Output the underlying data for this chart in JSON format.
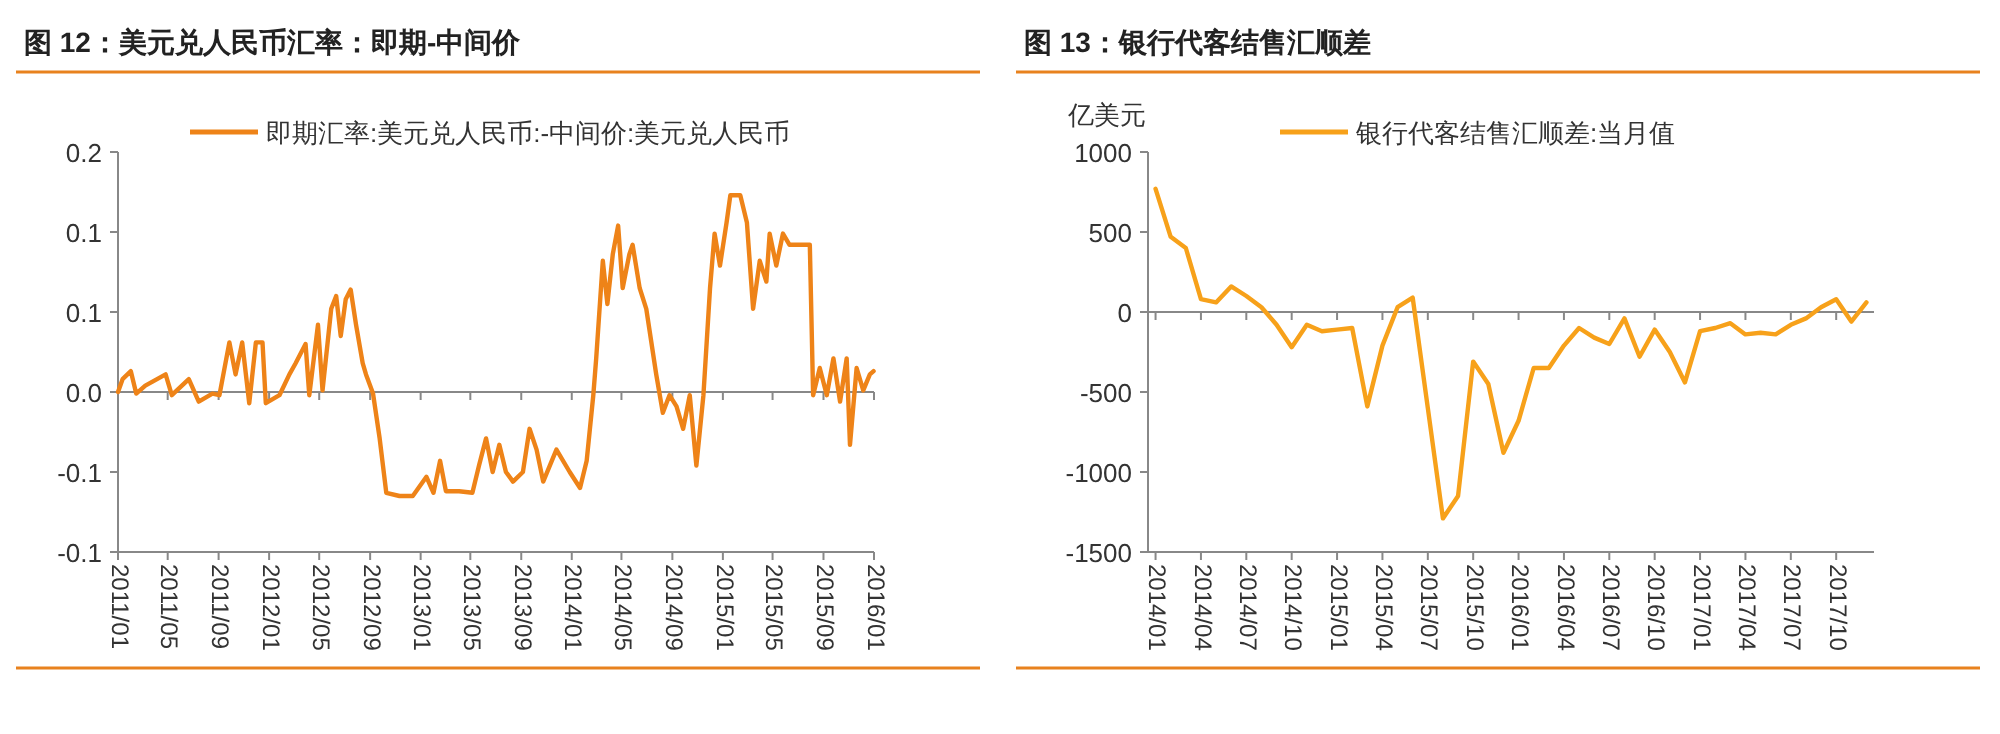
{
  "chart_data": [
    {
      "type": "line",
      "title": "图 12：美元兑人民币汇率：即期-中间价",
      "legend": "top",
      "x": [
        "2011-01-01",
        "2011-01-12",
        "2011-02-01",
        "2011-02-14",
        "2011-03-08",
        "2011-04-26",
        "2011-05-11",
        "2011-06-21",
        "2011-07-15",
        "2011-08-17",
        "2011-09-03",
        "2011-09-27",
        "2011-10-12",
        "2011-10-28",
        "2011-11-14",
        "2011-11-30",
        "2011-12-16",
        "2011-12-24",
        "2012-01-26",
        "2012-02-19",
        "2012-03-05",
        "2012-03-29",
        "2012-04-07",
        "2012-04-28",
        "2012-05-09",
        "2012-05-30",
        "2012-06-11",
        "2012-06-22",
        "2012-07-04",
        "2012-07-16",
        "2012-07-29",
        "2012-08-14",
        "2012-08-22",
        "2012-09-08",
        "2012-09-24",
        "2012-10-10",
        "2012-11-11",
        "2012-12-13",
        "2013-01-15",
        "2013-02-01",
        "2013-02-17",
        "2013-03-03",
        "2013-04-04",
        "2013-05-06",
        "2013-05-22",
        "2013-06-08",
        "2013-06-24",
        "2013-07-10",
        "2013-07-26",
        "2013-08-12",
        "2013-09-05",
        "2013-09-21",
        "2013-10-08",
        "2013-10-24",
        "2013-11-09",
        "2013-11-25",
        "2013-12-27",
        "2014-01-21",
        "2014-02-06",
        "2014-02-22",
        "2014-03-01",
        "2014-03-17",
        "2014-03-28",
        "2014-04-10",
        "2014-04-23",
        "2014-05-04",
        "2014-05-20",
        "2014-05-28",
        "2014-06-14",
        "2014-06-30",
        "2014-07-24",
        "2014-08-09",
        "2014-08-25",
        "2014-09-11",
        "2014-09-27",
        "2014-10-13",
        "2014-10-29",
        "2014-11-15",
        "2014-12-01",
        "2014-12-12",
        "2014-12-25",
        "2015-01-10",
        "2015-01-19",
        "2015-02-12",
        "2015-02-28",
        "2015-03-15",
        "2015-03-31",
        "2015-04-16",
        "2015-04-24",
        "2015-05-10",
        "2015-05-26",
        "2015-06-11",
        "2015-07-06",
        "2015-07-30",
        "2015-08-07",
        "2015-08-23",
        "2015-09-09",
        "2015-09-25",
        "2015-10-11",
        "2015-10-27",
        "2015-11-04",
        "2015-11-20",
        "2015-12-06",
        "2015-12-22",
        "2015-12-31"
      ],
      "series": [
        {
          "name": "即期汇率:美元兑人民币:-中间价:美元兑人民币",
          "color": "#ee8318",
          "values": [
            0,
            0.008,
            0.013,
            -0.001,
            0.004,
            0.011,
            -0.002,
            0.008,
            -0.006,
            -0.001,
            -0.002,
            0.031,
            0.011,
            0.031,
            -0.007,
            0.031,
            0.031,
            -0.007,
            -0.002,
            0.011,
            0.018,
            0.03,
            -0.002,
            0.042,
            0.001,
            0.052,
            0.06,
            0.035,
            0.058,
            0.064,
            0.042,
            0.018,
            0.011,
            -0.001,
            -0.029,
            -0.063,
            -0.065,
            -0.065,
            -0.053,
            -0.063,
            -0.043,
            -0.062,
            -0.062,
            -0.063,
            -0.046,
            -0.029,
            -0.05,
            -0.033,
            -0.05,
            -0.056,
            -0.05,
            -0.023,
            -0.036,
            -0.056,
            -0.046,
            -0.036,
            -0.05,
            -0.06,
            -0.043,
            -0.002,
            0.021,
            0.082,
            0.055,
            0.086,
            0.104,
            0.065,
            0.086,
            0.092,
            0.065,
            0.052,
            0.011,
            -0.013,
            -0.002,
            -0.009,
            -0.023,
            -0.002,
            -0.046,
            -0.002,
            0.065,
            0.099,
            0.079,
            0.106,
            0.123,
            0.123,
            0.106,
            0.052,
            0.082,
            0.069,
            0.099,
            0.079,
            0.099,
            0.092,
            0.092,
            0.092,
            -0.002,
            0.015,
            -0.002,
            0.021,
            -0.006,
            0.021,
            -0.033,
            0.015,
            0.001,
            0.011,
            0.013
          ]
        }
      ],
      "xlim": [
        "2011-01-01",
        "2016-01-01"
      ],
      "xticks": [
        {
          "value": "2011-01",
          "label": "2011/01"
        },
        {
          "value": "2011-05",
          "label": "2011/05"
        },
        {
          "value": "2011-09",
          "label": "2011/09"
        },
        {
          "value": "2012-01",
          "label": "2012/01"
        },
        {
          "value": "2012-05",
          "label": "2012/05"
        },
        {
          "value": "2012-09",
          "label": "2012/09"
        },
        {
          "value": "2013-01",
          "label": "2013/01"
        },
        {
          "value": "2013-05",
          "label": "2013/05"
        },
        {
          "value": "2013-09",
          "label": "2013/09"
        },
        {
          "value": "2014-01",
          "label": "2014/01"
        },
        {
          "value": "2014-05",
          "label": "2014/05"
        },
        {
          "value": "2014-09",
          "label": "2014/09"
        },
        {
          "value": "2015-01",
          "label": "2015/01"
        },
        {
          "value": "2015-05",
          "label": "2015/05"
        },
        {
          "value": "2015-09",
          "label": "2015/09"
        },
        {
          "value": "2016-01",
          "label": "2016/01"
        }
      ],
      "ylim": [
        -0.1,
        0.15
      ],
      "yticks": [
        {
          "value": 0.15,
          "label": "0.2"
        },
        {
          "value": 0.1,
          "label": "0.1"
        },
        {
          "value": 0.05,
          "label": "0.1"
        },
        {
          "value": 0,
          "label": "0.0"
        },
        {
          "value": -0.05,
          "label": "-0.1"
        },
        {
          "value": -0.1,
          "label": "-0.1"
        }
      ]
    },
    {
      "type": "line",
      "title": "图 13：银行代客结售汇顺差",
      "ylabel": "亿美元",
      "legend": "top",
      "categories": [
        "2014/01",
        null,
        null,
        "2014/04",
        null,
        null,
        "2014/07",
        null,
        null,
        "2014/10",
        null,
        null,
        "2015/01",
        null,
        null,
        "2015/04",
        null,
        null,
        "2015/07",
        null,
        null,
        "2015/10",
        null,
        null,
        "2016/01",
        null,
        null,
        "2016/04",
        null,
        null,
        "2016/07",
        null,
        null,
        "2016/10",
        null,
        null,
        "2017/01",
        null,
        null,
        "2017/04",
        null,
        null,
        "2017/07",
        null,
        null,
        "2017/10",
        null,
        null
      ],
      "series": [
        {
          "name": "银行代客结售汇顺差:当月值",
          "color": "#f7a11a",
          "values": [
            770,
            470,
            400,
            80,
            60,
            160,
            100,
            30,
            -80,
            -220,
            -80,
            -120,
            -110,
            -100,
            -590,
            -210,
            30,
            90,
            -600,
            -1290,
            -1150,
            -310,
            -450,
            -880,
            -680,
            -350,
            -350,
            -210,
            -100,
            -160,
            -200,
            -40,
            -280,
            -110,
            -250,
            -440,
            -120,
            -100,
            -70,
            -140,
            -130,
            -140,
            -80,
            -40,
            30,
            80,
            -60,
            60
          ]
        }
      ],
      "ylim": [
        -1500,
        1000
      ],
      "yticks": [
        1000,
        500,
        0,
        -500,
        -1000,
        -1500
      ]
    }
  ]
}
